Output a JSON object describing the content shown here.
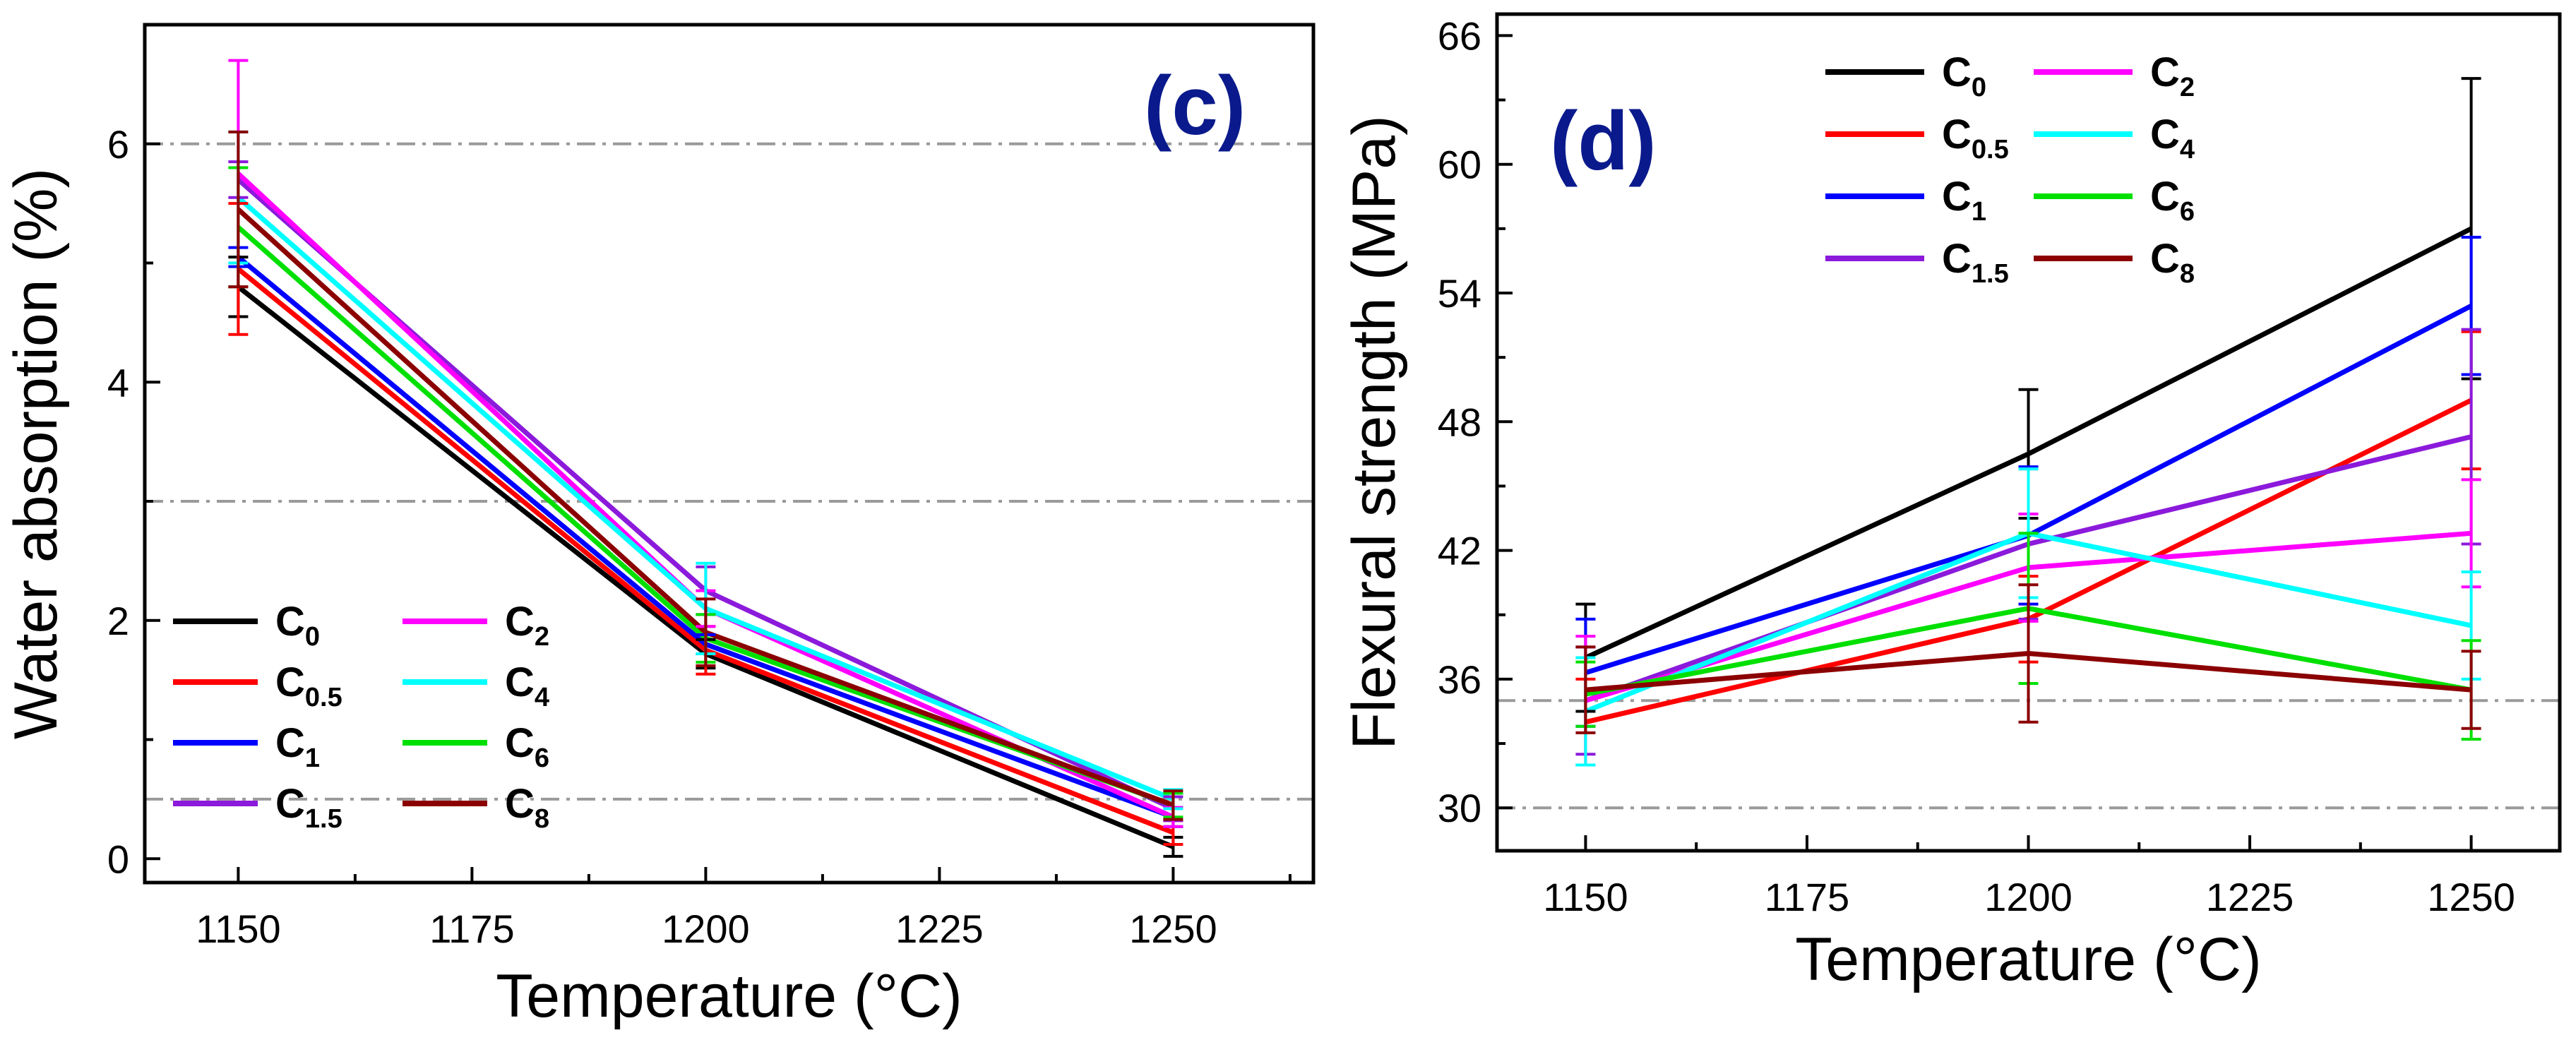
{
  "chart_data": [
    {
      "panel": "(c)",
      "type": "line",
      "xlabel": "Temperature (°C)",
      "ylabel": "Water absorption (%)",
      "x": [
        1150,
        1200,
        1250
      ],
      "xlim": [
        1140,
        1265
      ],
      "ylim": [
        -0.2,
        7.0
      ],
      "xticks": [
        1150,
        1175,
        1200,
        1225,
        1250
      ],
      "yticks": [
        0,
        2,
        4,
        6
      ],
      "ref_lines": [
        6.0,
        3.0,
        0.5
      ],
      "legend": {
        "position": "bottom-left",
        "columns": 2
      },
      "series": [
        {
          "name": "C0",
          "base": "C",
          "sub": "0",
          "color": "#000000",
          "values": [
            4.8,
            1.72,
            0.1
          ],
          "errors": [
            0.25,
            0.12,
            0.08
          ]
        },
        {
          "name": "C0.5",
          "base": "C",
          "sub": "0.5",
          "color": "#ff0000",
          "values": [
            4.95,
            1.75,
            0.22
          ],
          "errors": [
            0.55,
            0.2,
            0.1
          ]
        },
        {
          "name": "C1",
          "base": "C",
          "sub": "1",
          "color": "#0000ff",
          "values": [
            5.05,
            1.8,
            0.35
          ],
          "errors": [
            0.08,
            0.08,
            0.08
          ]
        },
        {
          "name": "C1.5",
          "base": "C",
          "sub": "1.5",
          "color": "#8b1adb",
          "values": [
            5.7,
            2.25,
            0.42
          ],
          "errors": [
            0.15,
            0.2,
            0.1
          ]
        },
        {
          "name": "C2",
          "base": "C",
          "sub": "2",
          "color": "#ff00ff",
          "values": [
            5.75,
            2.1,
            0.35
          ],
          "errors": [
            0.95,
            0.15,
            0.08
          ]
        },
        {
          "name": "C4",
          "base": "C",
          "sub": "4",
          "color": "#00ffff",
          "values": [
            5.55,
            2.1,
            0.5
          ],
          "errors": [
            0.55,
            0.38,
            0.08
          ]
        },
        {
          "name": "C6",
          "base": "C",
          "sub": "6",
          "color": "#00e000",
          "values": [
            5.3,
            1.85,
            0.45
          ],
          "errors": [
            0.5,
            0.2,
            0.1
          ]
        },
        {
          "name": "C8",
          "base": "C",
          "sub": "8",
          "color": "#8b0000",
          "values": [
            5.45,
            1.9,
            0.45
          ],
          "errors": [
            0.65,
            0.28,
            0.12
          ]
        }
      ]
    },
    {
      "panel": "(d)",
      "type": "line",
      "xlabel": "Temperature (°C)",
      "ylabel": "Flexural strength (MPa)",
      "x": [
        1150,
        1200,
        1250
      ],
      "xlim": [
        1140,
        1260
      ],
      "ylim": [
        28,
        67
      ],
      "xticks": [
        1150,
        1175,
        1200,
        1225,
        1250
      ],
      "yticks": [
        30,
        36,
        42,
        48,
        54,
        60,
        66
      ],
      "ref_lines": [
        35.0,
        30.0
      ],
      "legend": {
        "position": "top-center",
        "columns": 2
      },
      "series": [
        {
          "name": "C0",
          "base": "C",
          "sub": "0",
          "color": "#000000",
          "values": [
            37.0,
            46.5,
            57.0
          ],
          "errors": [
            2.5,
            3.0,
            7.0
          ]
        },
        {
          "name": "C0.5",
          "base": "C",
          "sub": "0.5",
          "color": "#ff0000",
          "values": [
            34.0,
            38.8,
            49.0
          ],
          "errors": [
            2.0,
            2.0,
            3.2
          ]
        },
        {
          "name": "C1",
          "base": "C",
          "sub": "1",
          "color": "#0000ff",
          "values": [
            36.3,
            42.7,
            53.4
          ],
          "errors": [
            2.5,
            3.2,
            3.2
          ]
        },
        {
          "name": "C1.5",
          "base": "C",
          "sub": "1.5",
          "color": "#8b1adb",
          "values": [
            35.0,
            42.3,
            47.3
          ],
          "errors": [
            2.5,
            3.5,
            5.0
          ]
        },
        {
          "name": "C2",
          "base": "C",
          "sub": "2",
          "color": "#ff00ff",
          "values": [
            35.0,
            41.2,
            42.8
          ],
          "errors": [
            3.0,
            2.5,
            2.5
          ]
        },
        {
          "name": "C4",
          "base": "C",
          "sub": "4",
          "color": "#00ffff",
          "values": [
            34.5,
            42.8,
            38.5
          ],
          "errors": [
            2.5,
            3.0,
            2.5
          ]
        },
        {
          "name": "C6",
          "base": "C",
          "sub": "6",
          "color": "#00e000",
          "values": [
            35.3,
            39.3,
            35.5
          ],
          "errors": [
            1.5,
            3.5,
            2.3
          ]
        },
        {
          "name": "C8",
          "base": "C",
          "sub": "8",
          "color": "#8b0000",
          "values": [
            35.5,
            37.2,
            35.5
          ],
          "errors": [
            2.0,
            3.2,
            1.8
          ]
        }
      ]
    }
  ]
}
